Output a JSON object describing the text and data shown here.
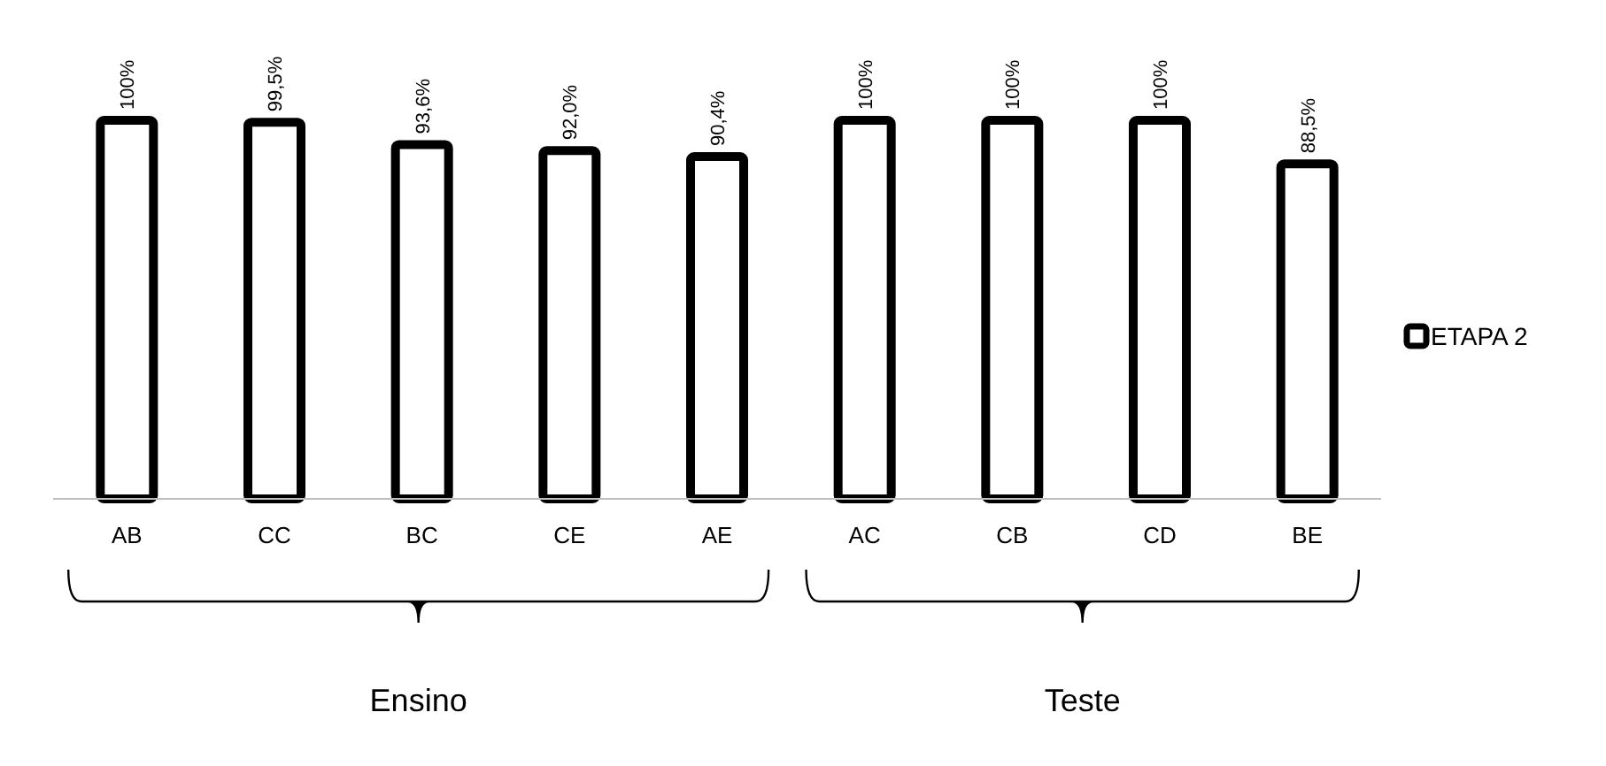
{
  "chart_data": {
    "type": "bar",
    "categories": [
      "AB",
      "CC",
      "BC",
      "CE",
      "AE",
      "AC",
      "CB",
      "CD",
      "BE"
    ],
    "series": [
      {
        "name": "ETAPA 2",
        "color": "#ffffff",
        "values": [
          100,
          99.5,
          93.6,
          92.0,
          90.4,
          100,
          100,
          100,
          88.5
        ],
        "value_labels": [
          "100%",
          "99,5%",
          "93,6%",
          "92,0%",
          "90,4%",
          "100%",
          "100%",
          "100%",
          "88,5%"
        ]
      }
    ],
    "legend": "right",
    "annotations": [
      "Ensino",
      "Teste"
    ]
  }
}
